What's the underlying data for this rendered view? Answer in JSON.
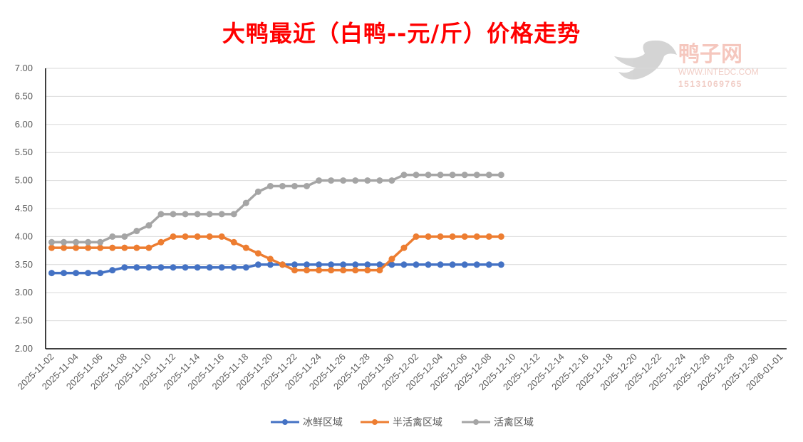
{
  "watermark": {
    "name": "鸭子网",
    "site": "WWW.INTEDC.COM",
    "phone": "15131069765"
  },
  "chart_data": {
    "type": "line",
    "title": "大鸭最近（白鸭--元/斤）价格走势",
    "xlabel": "",
    "ylabel": "",
    "ylim": [
      2.0,
      7.0
    ],
    "yticks": [
      "2.00",
      "2.50",
      "3.00",
      "3.50",
      "4.00",
      "4.50",
      "5.00",
      "5.50",
      "6.00",
      "6.50",
      "7.00"
    ],
    "x_start": "2025-11-02",
    "x_end": "2026-01-01",
    "xticks": [
      "2025-11-02",
      "2025-11-04",
      "2025-11-06",
      "2025-11-08",
      "2025-11-10",
      "2025-11-12",
      "2025-11-14",
      "2025-11-16",
      "2025-11-18",
      "2025-11-20",
      "2025-11-22",
      "2025-11-24",
      "2025-11-26",
      "2025-11-28",
      "2025-11-30",
      "2025-12-02",
      "2025-12-04",
      "2025-12-06",
      "2025-12-08",
      "2025-12-10",
      "2025-12-12",
      "2025-12-14",
      "2025-12-16",
      "2025-12-18",
      "2025-12-20",
      "2025-12-22",
      "2025-12-24",
      "2025-12-26",
      "2025-12-28",
      "2025-12-30",
      "2026-01-01"
    ],
    "grid": true,
    "legend": "bottom",
    "series": [
      {
        "name": "冰鲜区域",
        "color": "#4472C4",
        "values": [
          3.35,
          3.35,
          3.35,
          3.35,
          3.35,
          3.4,
          3.45,
          3.45,
          3.45,
          3.45,
          3.45,
          3.45,
          3.45,
          3.45,
          3.45,
          3.45,
          3.45,
          3.5,
          3.5,
          3.5,
          3.5,
          3.5,
          3.5,
          3.5,
          3.5,
          3.5,
          3.5,
          3.5,
          3.5,
          3.5,
          3.5,
          3.5,
          3.5,
          3.5,
          3.5,
          3.5,
          3.5,
          3.5
        ]
      },
      {
        "name": "半活禽区域",
        "color": "#ED7D31",
        "values": [
          3.8,
          3.8,
          3.8,
          3.8,
          3.8,
          3.8,
          3.8,
          3.8,
          3.8,
          3.9,
          4.0,
          4.0,
          4.0,
          4.0,
          4.0,
          3.9,
          3.8,
          3.7,
          3.6,
          3.5,
          3.4,
          3.4,
          3.4,
          3.4,
          3.4,
          3.4,
          3.4,
          3.4,
          3.6,
          3.8,
          4.0,
          4.0,
          4.0,
          4.0,
          4.0,
          4.0,
          4.0,
          4.0
        ]
      },
      {
        "name": "活禽区域",
        "color": "#A5A5A5",
        "values": [
          3.9,
          3.9,
          3.9,
          3.9,
          3.9,
          4.0,
          4.0,
          4.1,
          4.2,
          4.4,
          4.4,
          4.4,
          4.4,
          4.4,
          4.4,
          4.4,
          4.6,
          4.8,
          4.9,
          4.9,
          4.9,
          4.9,
          5.0,
          5.0,
          5.0,
          5.0,
          5.0,
          5.0,
          5.0,
          5.1,
          5.1,
          5.1,
          5.1,
          5.1,
          5.1,
          5.1,
          5.1,
          5.1
        ]
      }
    ]
  }
}
